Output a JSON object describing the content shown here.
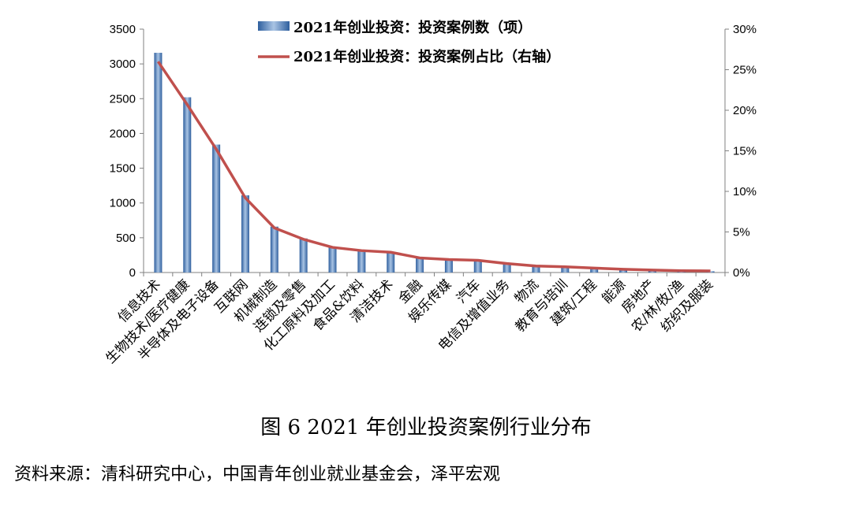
{
  "chart_data": {
    "type": "bar+line",
    "categories": [
      "信息技术",
      "生物技术/医疗健康",
      "半导体及电子设备",
      "互联网",
      "机械制造",
      "连锁及零售",
      "化工原料及加工",
      "食品&饮料",
      "清洁技术",
      "金融",
      "娱乐传媒",
      "汽车",
      "电信及增值业务",
      "物流",
      "教育与培训",
      "建筑/工程",
      "能源",
      "房地产",
      "农/林/牧/渔",
      "纺织及服装"
    ],
    "series": [
      {
        "name": "2021年创业投资：投资案例数（项）",
        "type": "bar",
        "axis": "left",
        "values": [
          3160,
          2520,
          1840,
          1110,
          660,
          490,
          370,
          320,
          300,
          210,
          190,
          175,
          140,
          90,
          75,
          60,
          40,
          28,
          22,
          18
        ]
      },
      {
        "name": "2021年创业投资：投资案例占比（右轴）",
        "type": "line",
        "axis": "right",
        "values": [
          26.0,
          20.7,
          15.2,
          9.2,
          5.5,
          4.1,
          3.1,
          2.7,
          2.5,
          1.8,
          1.6,
          1.5,
          1.1,
          0.8,
          0.7,
          0.55,
          0.4,
          0.3,
          0.22,
          0.2
        ]
      }
    ],
    "ylim_left": [
      0,
      3500
    ],
    "yticks_left": [
      "0",
      "500",
      "1000",
      "1500",
      "2000",
      "2500",
      "3000",
      "3500"
    ],
    "ylim_right": [
      0,
      30
    ],
    "yticks_right": [
      "0%",
      "5%",
      "10%",
      "15%",
      "20%",
      "25%",
      "30%"
    ],
    "legend_position": "top-center",
    "colors": {
      "bar": "#4f81bd",
      "line": "#c0504d"
    }
  },
  "caption": "图 6 2021 年创业投资案例行业分布",
  "source": "资料来源：清科研究中心，中国青年创业就业基金会，泽平宏观"
}
